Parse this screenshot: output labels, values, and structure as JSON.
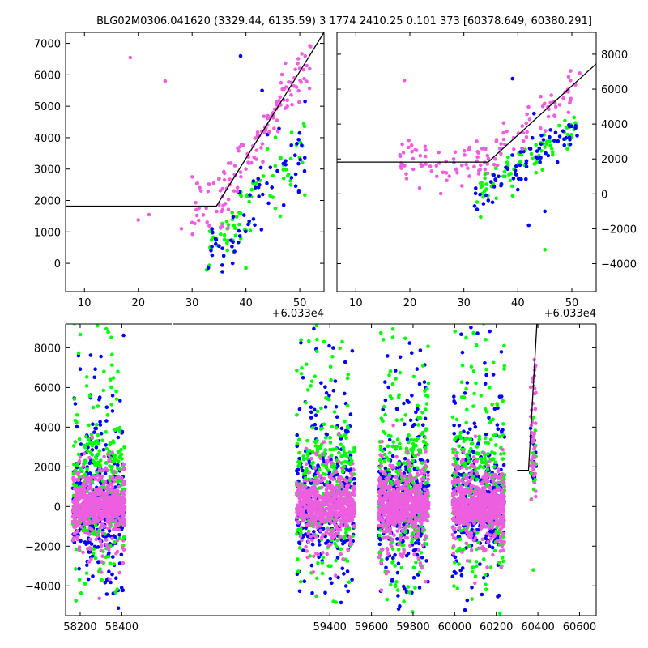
{
  "figure": {
    "title": "BLG02M0306.041620 (3329.44, 6135.59)   3 1774 2410.25 0.101 373 [60378.649, 60380.291]",
    "colors": {
      "green": "#00ff00",
      "blue": "#0000ff",
      "pink": "#ee5fe0",
      "fit": "#000000"
    }
  },
  "chart_data": [
    {
      "type": "scatter",
      "panel": "top-left zoom",
      "x_offset_label": "+6.033e4",
      "xlim": [
        6.5,
        54.5
      ],
      "ylim": [
        -900,
        7350
      ],
      "xticks": [
        10,
        20,
        30,
        40,
        50
      ],
      "yticks": [
        0,
        1000,
        2000,
        3000,
        4000,
        5000,
        6000,
        7000
      ],
      "fit_line": {
        "x": [
          6.5,
          34.5,
          54.5
        ],
        "y": [
          1820,
          1820,
          7350
        ]
      },
      "series": [
        {
          "color": "pink",
          "seed": 11,
          "points": [
            [
              18.5,
              6550
            ],
            [
              25,
              5800
            ],
            [
              20,
              1380
            ],
            [
              22,
              1550
            ],
            [
              28,
              1100
            ],
            [
              30,
              1300
            ],
            [
              31,
              2550
            ],
            [
              34,
              2550
            ],
            [
              36,
              2650
            ],
            [
              38,
              2800
            ],
            [
              39,
              2900
            ],
            [
              41,
              3200
            ],
            [
              42,
              3600
            ],
            [
              43,
              4200
            ],
            [
              44,
              4400
            ],
            [
              45,
              4700
            ],
            [
              46,
              5000
            ],
            [
              47,
              5200
            ],
            [
              48,
              5500
            ],
            [
              49,
              5900
            ],
            [
              50,
              6200
            ],
            [
              51,
              6600
            ],
            [
              52,
              6900
            ],
            [
              37,
              2500
            ],
            [
              40,
              3000
            ]
          ],
          "scatter": {
            "n": 120,
            "xr": [
              30,
              52
            ],
            "mode": "fit",
            "sd": 700,
            "extra": 30
          }
        },
        {
          "color": "blue",
          "seed": 23,
          "points": [
            [
              39,
              6600
            ],
            [
              33,
              -150
            ],
            [
              47,
              1850
            ],
            [
              43,
              5500
            ],
            [
              44,
              4100
            ],
            [
              35,
              550
            ]
          ],
          "scatter": {
            "n": 65,
            "xr": [
              33,
              51
            ],
            "mode": "band",
            "lo": 500,
            "hi": 3800
          }
        },
        {
          "color": "green",
          "seed": 37,
          "points": [
            [
              40,
              -150
            ],
            [
              36,
              900
            ],
            [
              45,
              2100
            ],
            [
              35,
              2700
            ]
          ],
          "scatter": {
            "n": 75,
            "xr": [
              32,
              51
            ],
            "mode": "band",
            "lo": 0,
            "hi": 3600
          }
        }
      ]
    },
    {
      "type": "scatter",
      "panel": "top-right zoom",
      "x_offset_label": "+6.033e4",
      "xlim": [
        6.5,
        54.5
      ],
      "ylim": [
        -5600,
        9250
      ],
      "xticks": [
        10,
        20,
        30,
        40,
        50
      ],
      "yticks": [
        -4000,
        -2000,
        0,
        2000,
        4000,
        6000,
        8000
      ],
      "fit_line": {
        "x": [
          6.5,
          34.5,
          54.5
        ],
        "y": [
          1820,
          1820,
          7450
        ]
      },
      "series": [
        {
          "color": "pink",
          "seed": 51,
          "points": [
            [
              19,
              6500
            ],
            [
              25,
              1000
            ],
            [
              33,
              1400
            ],
            [
              34,
              2600
            ]
          ],
          "scatter": {
            "n": 130,
            "xr": [
              18,
              52
            ],
            "mode": "fit",
            "sd": 900,
            "extra": 20
          }
        },
        {
          "color": "blue",
          "seed": 61,
          "points": [
            [
              39,
              6600
            ],
            [
              42,
              -1800
            ],
            [
              32,
              -700
            ],
            [
              45,
              -1000
            ],
            [
              43,
              4600
            ]
          ],
          "scatter": {
            "n": 70,
            "xr": [
              32,
              51
            ],
            "mode": "band",
            "lo": -200,
            "hi": 4000
          }
        },
        {
          "color": "green",
          "seed": 71,
          "points": [
            [
              45,
              -3200
            ],
            [
              36,
              -250
            ]
          ],
          "scatter": {
            "n": 80,
            "xr": [
              32,
              51
            ],
            "mode": "band",
            "lo": 0,
            "hi": 3800
          }
        }
      ]
    },
    {
      "type": "scatter",
      "panel": "bottom full light curve",
      "xlim": [
        58130,
        60680
      ],
      "ylim": [
        -5500,
        9200
      ],
      "xticks": [
        58200,
        58400,
        59400,
        59600,
        59800,
        60000,
        60200,
        60400,
        60600
      ],
      "yticks": [
        -4000,
        -2000,
        0,
        2000,
        4000,
        6000,
        8000
      ],
      "gap_x": [
        58480,
        59200
      ],
      "seasons": [
        [
          58165,
          58415
        ],
        [
          59240,
          59520
        ],
        [
          59635,
          59875
        ],
        [
          59990,
          60240
        ]
      ],
      "event": {
        "x": [
          60365,
          60392
        ],
        "fit_line": {
          "x": [
            60300,
            60355,
            60395
          ],
          "y": [
            1820,
            1820,
            9200
          ]
        }
      },
      "series": [
        {
          "color": "blue",
          "seed": 101,
          "band": [
            -1800,
            2200
          ],
          "spread_down": 4500,
          "spread_up": 6000,
          "n": 330
        },
        {
          "color": "green",
          "seed": 211,
          "band": [
            -1200,
            3500
          ],
          "spread_down": 3500,
          "spread_up": 8500,
          "n": 300
        },
        {
          "color": "pink",
          "seed": 307,
          "band": [
            -600,
            600
          ],
          "spread_down": 2000,
          "spread_up": 1800,
          "n": 650
        }
      ]
    }
  ]
}
